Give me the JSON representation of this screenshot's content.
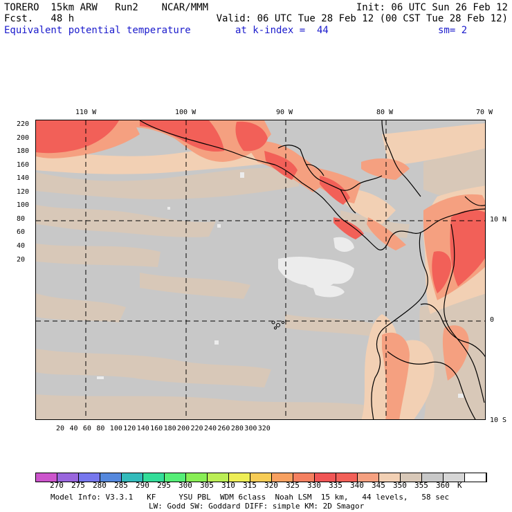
{
  "header": {
    "title": "TORERO  15km ARW   Run2    NCAR/MMM",
    "init": "Init: 06 UTC Sun 26 Feb 12",
    "forecast": "Fcst.   48 h",
    "valid": "Valid: 06 UTC Tue 28 Feb 12 (00 CST Tue 28 Feb 12)",
    "field": "Equivalent potential temperature",
    "level": "at k-index =  44",
    "smoothing": "sm= 2"
  },
  "map": {
    "lon_labels": [
      "110 W",
      "100 W",
      "90 W",
      "80 W",
      "70 W"
    ],
    "lat_labels": [
      "10 N",
      "0",
      "10 S"
    ],
    "y_ticks": [
      "220",
      "200",
      "180",
      "160",
      "140",
      "120",
      "100",
      "80",
      "60",
      "40",
      "20"
    ],
    "x_ticks": [
      "20",
      "40",
      "60",
      "80",
      "100",
      "120",
      "140",
      "160",
      "180",
      "200",
      "220",
      "240",
      "260",
      "280",
      "300",
      "320"
    ],
    "colors": {
      "background": "#c8c8c8",
      "tan": "#d8c8b8",
      "peach": "#f2d0b4",
      "salmon": "#f5a080",
      "red": "#f26058",
      "white": "#ffffff"
    }
  },
  "colorbar": {
    "colors": [
      "#cc55cc",
      "#9966dd",
      "#7777ee",
      "#5588dd",
      "#33bbbb",
      "#33dd99",
      "#55ee77",
      "#88ee55",
      "#bbee55",
      "#eeee55",
      "#f7cc55",
      "#f7a060",
      "#f58060",
      "#f05555",
      "#f26058",
      "#f5a080",
      "#f2d0b4",
      "#d8c8b8",
      "#c8c8c8",
      "#d6d6d6",
      "#ffffff"
    ],
    "labels": [
      "270",
      "275",
      "280",
      "285",
      "290",
      "295",
      "300",
      "305",
      "310",
      "315",
      "320",
      "325",
      "330",
      "335",
      "340",
      "345",
      "350",
      "355",
      "360",
      "K"
    ]
  },
  "footer": {
    "line1": "Model Info: V3.3.1   KF     YSU PBL  WDM 6class  Noah LSM  15 km,   44 levels,   58 sec",
    "line2": "LW: Godd SW: Goddard DIFF: simple KM: 2D Smagor"
  }
}
